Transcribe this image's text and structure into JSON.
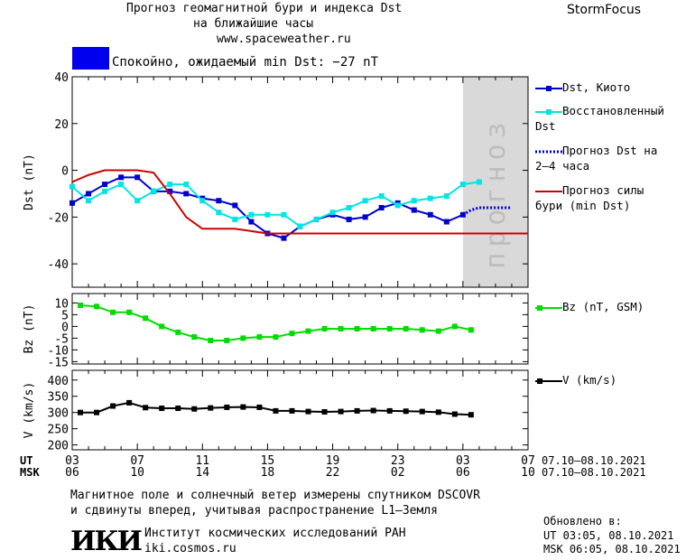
{
  "header": {
    "title_line1": "Прогноз геомагнитной бури и индекса Dst",
    "title_line2": "на ближайшие часы",
    "url": "www.spaceweather.ru",
    "brand": "StormFocus",
    "status": "Спокойно, ожидаемый min Dst: −27 nT",
    "status_color": "#0000ee"
  },
  "forecast_band_label": "прогноз",
  "time_axis": {
    "ut_label": "UT",
    "msk_label": "MSK",
    "ut_ticks": [
      "03",
      "07",
      "11",
      "15",
      "19",
      "23",
      "03",
      "07"
    ],
    "msk_ticks": [
      "06",
      "10",
      "14",
      "18",
      "22",
      "02",
      "06",
      "10"
    ],
    "ut_date_range": "07.10–08.10.2021",
    "msk_date_range": "07.10–08.10.2021"
  },
  "footer": {
    "note_line1": "Магнитное поле и солнечный ветер измерены спутником DSCOVR",
    "note_line2": "и сдвинуты вперед, учитывая распространение L1–Земля",
    "logo": "ИКИ",
    "institute": "Институт космических исследований РАН",
    "site": "iki.cosmos.ru",
    "updated_label": "Обновлено в:",
    "updated_ut": "UT  03:05, 08.10.2021",
    "updated_msk": "MSK 06:05, 08.10.2021"
  },
  "chart_data": [
    {
      "type": "line",
      "ylabel": "Dst (nT)",
      "ylim": [
        -50,
        40
      ],
      "yticks": [
        40,
        20,
        0,
        -20,
        -40
      ],
      "xlim": [
        3,
        31
      ],
      "forecast_band": [
        27,
        31
      ],
      "series": [
        {
          "name": "Dst, Киото",
          "color": "#0000cc",
          "marker": true,
          "x": [
            3,
            4,
            5,
            6,
            7,
            8,
            9,
            10,
            11,
            12,
            13,
            14,
            15,
            16,
            17,
            18,
            19,
            20,
            21,
            22,
            23,
            24,
            25,
            26,
            27
          ],
          "y": [
            -14,
            -10,
            -6,
            -3,
            -3,
            -9,
            -9,
            -10,
            -12,
            -13,
            -15,
            -22,
            -27,
            -29,
            -24,
            -21,
            -19,
            -21,
            -20,
            -16,
            -14,
            -17,
            -19,
            -22,
            -19
          ]
        },
        {
          "name": "Восстановленный Dst",
          "color": "#00e5e5",
          "marker": true,
          "x": [
            3,
            4,
            5,
            6,
            7,
            8,
            9,
            10,
            11,
            12,
            13,
            14,
            15,
            16,
            17,
            18,
            19,
            20,
            21,
            22,
            23,
            24,
            25,
            26,
            27,
            28
          ],
          "y": [
            -7,
            -13,
            -9,
            -6,
            -13,
            -9,
            -6,
            -6,
            -13,
            -18,
            -21,
            -19,
            -19,
            -19,
            -24,
            -21,
            -18,
            -16,
            -13,
            -11,
            -15,
            -13,
            -12,
            -11,
            -6,
            -5
          ]
        },
        {
          "name": "Прогноз Dst на 2–4 часа",
          "color": "#0000cc",
          "dotted": true,
          "x": [
            27,
            27.5,
            28,
            29,
            30
          ],
          "y": [
            -19,
            -17,
            -16,
            -16,
            -16
          ]
        },
        {
          "name": "Прогноз силы бури (min Dst)",
          "color": "#cc0000",
          "x": [
            3,
            4,
            5,
            6,
            7,
            8,
            9,
            10,
            11,
            12,
            13,
            14,
            15,
            31
          ],
          "y": [
            -5,
            -2,
            0,
            0,
            0,
            -1,
            -10,
            -20,
            -25,
            -25,
            -25,
            -26,
            -27,
            -27
          ]
        }
      ]
    },
    {
      "type": "line",
      "ylabel": "Bz (nT)",
      "ylim": [
        -16,
        14
      ],
      "yticks": [
        10,
        5,
        0,
        -5,
        -10,
        -15
      ],
      "xlim": [
        3,
        31
      ],
      "series": [
        {
          "name": "Bz (nT, GSM)",
          "color": "#00dd00",
          "marker": true,
          "x": [
            3.5,
            4.5,
            5.5,
            6.5,
            7.5,
            8.5,
            9.5,
            10.5,
            11.5,
            12.5,
            13.5,
            14.5,
            15.5,
            16.5,
            17.5,
            18.5,
            19.5,
            20.5,
            21.5,
            22.5,
            23.5,
            24.5,
            25.5,
            26.5,
            27.5
          ],
          "y": [
            9,
            8.5,
            6,
            6,
            3.5,
            0,
            -2.5,
            -4.5,
            -6,
            -6,
            -5,
            -4.5,
            -4.5,
            -3,
            -2,
            -1,
            -1,
            -1,
            -1,
            -1,
            -1,
            -1.5,
            -2,
            0,
            -1.5
          ]
        }
      ]
    },
    {
      "type": "line",
      "ylabel": "V (km/s)",
      "ylim": [
        185,
        430
      ],
      "yticks": [
        400,
        350,
        300,
        250,
        200
      ],
      "xlim": [
        3,
        31
      ],
      "series": [
        {
          "name": "V (km/s)",
          "color": "#000000",
          "marker": true,
          "x": [
            3.5,
            4.5,
            5.5,
            6.5,
            7.5,
            8.5,
            9.5,
            10.5,
            11.5,
            12.5,
            13.5,
            14.5,
            15.5,
            16.5,
            17.5,
            18.5,
            19.5,
            20.5,
            21.5,
            22.5,
            23.5,
            24.5,
            25.5,
            26.5,
            27.5
          ],
          "y": [
            300,
            300,
            320,
            330,
            315,
            313,
            313,
            311,
            314,
            316,
            317,
            316,
            305,
            305,
            303,
            302,
            303,
            305,
            306,
            305,
            304,
            303,
            301,
            295,
            293
          ]
        }
      ]
    }
  ]
}
